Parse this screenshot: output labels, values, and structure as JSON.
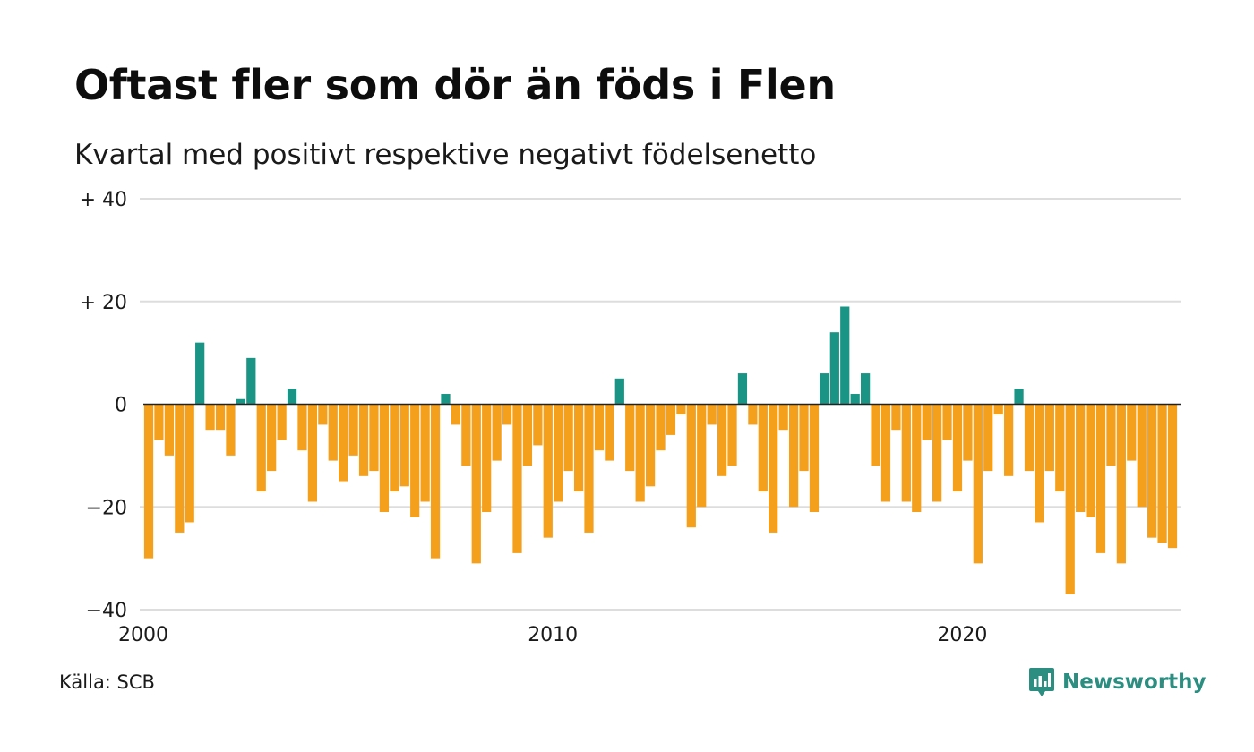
{
  "header": {
    "title": "Oftast fler som dör än föds i Flen",
    "subtitle": "Kvartal med positivt respektive negativt födelsenetto"
  },
  "footer": {
    "source": "Källa: SCB",
    "brand": "Newsworthy",
    "brand_icon": "newsworthy-logo-icon"
  },
  "colors": {
    "positive": "#1a9484",
    "negative": "#f4a01c",
    "grid": "#dddddd",
    "zero_line": "#222222",
    "brand": "#2b8e80"
  },
  "chart_data": {
    "type": "bar",
    "title": "Oftast fler som dör än föds i Flen",
    "subtitle": "Kvartal med positivt respektive negativt födelsenetto",
    "ylim": [
      -40,
      40
    ],
    "y_ticks": [
      {
        "value": 40,
        "label": "+ 40"
      },
      {
        "value": 20,
        "label": "+ 20"
      },
      {
        "value": 0,
        "label": "0"
      },
      {
        "value": -20,
        "label": "−20"
      },
      {
        "value": -40,
        "label": "−40"
      }
    ],
    "x_ticks": [
      {
        "value": 2000,
        "label": "2000"
      },
      {
        "value": 2010,
        "label": "2010"
      },
      {
        "value": 2020,
        "label": "2020"
      }
    ],
    "start_year": 2000,
    "periods_per_year": 4,
    "grid": "horizontal",
    "values": [
      -30,
      -7,
      -10,
      -25,
      -23,
      12,
      -5,
      -5,
      -10,
      1,
      9,
      -17,
      -13,
      -7,
      3,
      -9,
      -19,
      -4,
      -11,
      -15,
      -10,
      -14,
      -13,
      -21,
      -17,
      -16,
      -22,
      -19,
      -30,
      2,
      -4,
      -12,
      -31,
      -21,
      -11,
      -4,
      -29,
      -12,
      -8,
      -26,
      -19,
      -13,
      -17,
      -25,
      -9,
      -11,
      5,
      -13,
      -19,
      -16,
      -9,
      -6,
      -2,
      -24,
      -20,
      -4,
      -14,
      -12,
      6,
      -4,
      -17,
      -25,
      -5,
      -20,
      -13,
      -21,
      6,
      14,
      19,
      2,
      6,
      -12,
      -19,
      -5,
      -19,
      -21,
      -7,
      -19,
      -7,
      -17,
      -11,
      -31,
      -13,
      -2,
      -14,
      3,
      -13,
      -23,
      -13,
      -17,
      -37,
      -21,
      -22,
      -29,
      -12,
      -31,
      -11,
      -20,
      -26,
      -27,
      -28
    ]
  }
}
